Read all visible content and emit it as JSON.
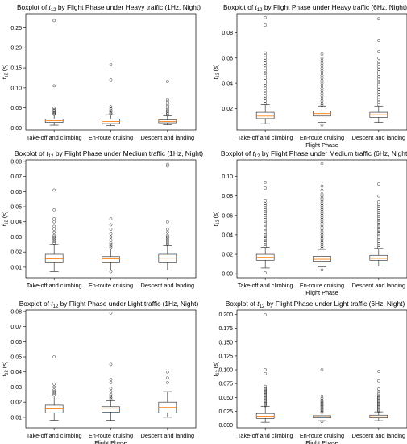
{
  "chart_data": [
    {
      "type": "boxplot",
      "title_prefix": "Boxplot of ",
      "title_suffix": " by Flight Phase under Heavy traffic (1Hz, Night)",
      "symbol": "t",
      "subscript": "12",
      "ylabel_suffix": " (s)",
      "xlabel": "",
      "categories": [
        "Take-off and climbing",
        "En-route cruising",
        "Descent and landing"
      ],
      "ylim": [
        -0.005,
        0.285
      ],
      "yticks": [
        0.0,
        0.05,
        0.1,
        0.15,
        0.2,
        0.25
      ],
      "yticklabels": [
        "0.00",
        "0.05",
        "0.10",
        "0.15",
        "0.20",
        "0.25"
      ],
      "boxes": [
        {
          "whislo": 0.007,
          "q1": 0.014,
          "med": 0.018,
          "q3": 0.022,
          "whishi": 0.032,
          "fliers": [
            0.034,
            0.036,
            0.038,
            0.04,
            0.043,
            0.046,
            0.05,
            0.105,
            0.268
          ]
        },
        {
          "whislo": 0.006,
          "q1": 0.011,
          "med": 0.016,
          "q3": 0.022,
          "whishi": 0.033,
          "fliers": [
            0.035,
            0.037,
            0.04,
            0.044,
            0.048,
            0.053,
            0.12,
            0.158
          ]
        },
        {
          "whislo": 0.008,
          "q1": 0.013,
          "med": 0.016,
          "q3": 0.02,
          "whishi": 0.03,
          "fliers": [
            0.032,
            0.035,
            0.038,
            0.042,
            0.046,
            0.05,
            0.055,
            0.06,
            0.065,
            0.07,
            0.116
          ]
        }
      ]
    },
    {
      "type": "boxplot",
      "title_prefix": "Boxplot of ",
      "title_suffix": " by Flight Phase under Heavy traffic (6Hz, Night)",
      "symbol": "t",
      "subscript": "12",
      "ylabel_suffix": " (s)",
      "xlabel": "",
      "categories": [
        "Take-off and climbing",
        "En-route cruising",
        "Descent and landing"
      ],
      "ylim": [
        0.003,
        0.095
      ],
      "yticks": [
        0.02,
        0.04,
        0.06,
        0.08
      ],
      "yticklabels": [
        "0.02",
        "0.04",
        "0.06",
        "0.08"
      ],
      "boxes": [
        {
          "whislo": 0.008,
          "q1": 0.012,
          "med": 0.014,
          "q3": 0.017,
          "whishi": 0.023,
          "fliers": [
            0.024,
            0.026,
            0.028,
            0.03,
            0.032,
            0.034,
            0.036,
            0.038,
            0.04,
            0.042,
            0.044,
            0.046,
            0.048,
            0.05,
            0.052,
            0.054,
            0.056,
            0.058,
            0.06,
            0.062,
            0.064,
            0.086,
            0.092
          ]
        },
        {
          "whislo": 0.009,
          "q1": 0.014,
          "med": 0.016,
          "q3": 0.018,
          "whishi": 0.022,
          "fliers": [
            0.0225,
            0.024,
            0.026,
            0.028,
            0.03,
            0.032,
            0.034,
            0.036,
            0.038,
            0.04,
            0.042,
            0.044,
            0.046,
            0.048,
            0.05,
            0.052,
            0.054,
            0.056,
            0.058,
            0.06,
            0.063,
            0.007
          ]
        },
        {
          "whislo": 0.009,
          "q1": 0.013,
          "med": 0.015,
          "q3": 0.017,
          "whishi": 0.022,
          "fliers": [
            0.023,
            0.025,
            0.027,
            0.029,
            0.031,
            0.033,
            0.035,
            0.037,
            0.039,
            0.041,
            0.043,
            0.045,
            0.047,
            0.049,
            0.051,
            0.053,
            0.055,
            0.057,
            0.06,
            0.065,
            0.074,
            0.091
          ]
        }
      ]
    },
    {
      "type": "boxplot",
      "title_prefix": "Boxplot of ",
      "title_suffix": " by Flight Phase under Medium traffic (1Hz, Night)",
      "symbol": "t",
      "subscript": "12",
      "ylabel_suffix": " (s)",
      "xlabel": "",
      "categories": [
        "Take-off and climbing",
        "En-route cruising",
        "Descent and landing"
      ],
      "ylim": [
        0.003,
        0.081
      ],
      "yticks": [
        0.01,
        0.02,
        0.03,
        0.04,
        0.05,
        0.06,
        0.07,
        0.08
      ],
      "yticklabels": [
        "0.01",
        "0.02",
        "0.03",
        "0.04",
        "0.05",
        "0.06",
        "0.07",
        "0.08"
      ],
      "boxes": [
        {
          "whislo": 0.007,
          "q1": 0.013,
          "med": 0.0155,
          "q3": 0.0185,
          "whishi": 0.025,
          "fliers": [
            0.026,
            0.027,
            0.028,
            0.029,
            0.03,
            0.031,
            0.033,
            0.035,
            0.037,
            0.04,
            0.042,
            0.048,
            0.061
          ]
        },
        {
          "whislo": 0.008,
          "q1": 0.013,
          "med": 0.0155,
          "q3": 0.017,
          "whishi": 0.022,
          "fliers": [
            0.023,
            0.024,
            0.025,
            0.026,
            0.028,
            0.03,
            0.032,
            0.035,
            0.038,
            0.042,
            0.007
          ]
        },
        {
          "whislo": 0.008,
          "q1": 0.013,
          "med": 0.016,
          "q3": 0.0185,
          "whishi": 0.024,
          "fliers": [
            0.025,
            0.026,
            0.027,
            0.028,
            0.029,
            0.03,
            0.031,
            0.033,
            0.035,
            0.04,
            0.077,
            0.078
          ]
        }
      ]
    },
    {
      "type": "boxplot",
      "title_prefix": "Boxplot of ",
      "title_suffix": " by Flight Phase under Medium traffic (6Hz, Night)",
      "symbol": "t",
      "subscript": "12",
      "ylabel_suffix": " (s)",
      "xlabel": "",
      "categories": [
        "Take-off and climbing",
        "En-route cruising",
        "Descent and landing"
      ],
      "ylim": [
        -0.004,
        0.117
      ],
      "yticks": [
        0.0,
        0.02,
        0.04,
        0.06,
        0.08,
        0.1
      ],
      "yticklabels": [
        "0.00",
        "0.02",
        "0.04",
        "0.06",
        "0.08",
        "0.10"
      ],
      "boxes": [
        {
          "whislo": 0.006,
          "q1": 0.014,
          "med": 0.017,
          "q3": 0.02,
          "whishi": 0.027,
          "fliers": [
            0.028,
            0.03,
            0.032,
            0.034,
            0.036,
            0.038,
            0.04,
            0.042,
            0.044,
            0.046,
            0.048,
            0.05,
            0.052,
            0.054,
            0.056,
            0.058,
            0.06,
            0.062,
            0.064,
            0.066,
            0.068,
            0.07,
            0.072,
            0.075,
            0.088,
            0.094,
            0.001
          ]
        },
        {
          "whislo": 0.007,
          "q1": 0.013,
          "med": 0.015,
          "q3": 0.018,
          "whishi": 0.025,
          "fliers": [
            0.026,
            0.028,
            0.03,
            0.032,
            0.034,
            0.036,
            0.038,
            0.04,
            0.042,
            0.044,
            0.046,
            0.048,
            0.05,
            0.052,
            0.054,
            0.056,
            0.058,
            0.06,
            0.062,
            0.064,
            0.066,
            0.068,
            0.07,
            0.072,
            0.074,
            0.076,
            0.078,
            0.08,
            0.082,
            0.086,
            0.09,
            0.113,
            0.004
          ]
        },
        {
          "whislo": 0.008,
          "q1": 0.014,
          "med": 0.016,
          "q3": 0.019,
          "whishi": 0.026,
          "fliers": [
            0.027,
            0.029,
            0.031,
            0.033,
            0.035,
            0.037,
            0.039,
            0.041,
            0.043,
            0.045,
            0.047,
            0.049,
            0.051,
            0.053,
            0.055,
            0.057,
            0.059,
            0.061,
            0.063,
            0.065,
            0.067,
            0.069,
            0.071,
            0.074,
            0.08,
            0.092
          ]
        }
      ]
    },
    {
      "type": "boxplot",
      "title_prefix": "Boxplot of ",
      "title_suffix": " by Flight Phase under Light traffic (1Hz, Night)",
      "symbol": "t",
      "subscript": "12",
      "ylabel_suffix": " (s)",
      "xlabel": "",
      "categories": [
        "Take-off and climbing",
        "En-route cruising",
        "Descent and landing"
      ],
      "ylim": [
        0.003,
        0.081
      ],
      "yticks": [
        0.01,
        0.02,
        0.03,
        0.04,
        0.05,
        0.06,
        0.07,
        0.08
      ],
      "yticklabels": [
        "0.01",
        "0.02",
        "0.03",
        "0.04",
        "0.05",
        "0.06",
        "0.07",
        "0.08"
      ],
      "boxes": [
        {
          "whislo": 0.008,
          "q1": 0.013,
          "med": 0.0155,
          "q3": 0.018,
          "whishi": 0.024,
          "fliers": [
            0.025,
            0.026,
            0.027,
            0.028,
            0.03,
            0.032,
            0.05
          ]
        },
        {
          "whislo": 0.008,
          "q1": 0.0135,
          "med": 0.016,
          "q3": 0.017,
          "whishi": 0.021,
          "fliers": [
            0.022,
            0.023,
            0.024,
            0.025,
            0.027,
            0.029,
            0.033,
            0.035,
            0.045,
            0.079
          ]
        },
        {
          "whislo": 0.01,
          "q1": 0.013,
          "med": 0.0165,
          "q3": 0.02,
          "whishi": 0.027,
          "fliers": [
            0.033,
            0.036,
            0.04
          ]
        }
      ]
    },
    {
      "type": "boxplot",
      "title_prefix": "Boxplot of ",
      "title_suffix": " by Flight Phase under Light traffic (6Hz, Night)",
      "symbol": "t",
      "subscript": "12",
      "ylabel_suffix": " (s)",
      "xlabel": "",
      "categories": [
        "Take-off and climbing",
        "En-route cruising",
        "Descent and landing"
      ],
      "ylim": [
        -0.005,
        0.208
      ],
      "yticks": [
        0.0,
        0.025,
        0.05,
        0.075,
        0.1,
        0.125,
        0.15,
        0.175,
        0.2
      ],
      "yticklabels": [
        "0.000",
        "0.025",
        "0.050",
        "0.075",
        "0.100",
        "0.125",
        "0.150",
        "0.175",
        "0.200"
      ],
      "boxes": [
        {
          "whislo": 0.005,
          "q1": 0.012,
          "med": 0.016,
          "q3": 0.021,
          "whishi": 0.034,
          "fliers": [
            0.035,
            0.037,
            0.039,
            0.041,
            0.043,
            0.045,
            0.047,
            0.049,
            0.051,
            0.053,
            0.055,
            0.057,
            0.059,
            0.061,
            0.063,
            0.065,
            0.067,
            0.07,
            0.093,
            0.1,
            0.199
          ]
        },
        {
          "whislo": 0.008,
          "q1": 0.013,
          "med": 0.015,
          "q3": 0.017,
          "whishi": 0.022,
          "fliers": [
            0.023,
            0.025,
            0.027,
            0.029,
            0.031,
            0.033,
            0.035,
            0.037,
            0.039,
            0.041,
            0.043,
            0.045,
            0.048,
            0.052,
            0.1,
            0.006
          ]
        },
        {
          "whislo": 0.008,
          "q1": 0.013,
          "med": 0.015,
          "q3": 0.018,
          "whishi": 0.024,
          "fliers": [
            0.025,
            0.027,
            0.029,
            0.031,
            0.033,
            0.035,
            0.037,
            0.039,
            0.041,
            0.043,
            0.045,
            0.047,
            0.049,
            0.051,
            0.053,
            0.056,
            0.06,
            0.065,
            0.08,
            0.097
          ]
        }
      ]
    }
  ],
  "shared_xlabel": "Flight Phase",
  "colors": {
    "box": "#1f1f1f",
    "median": "#ff7f0e",
    "flier": "#333333",
    "frame": "#000000"
  }
}
